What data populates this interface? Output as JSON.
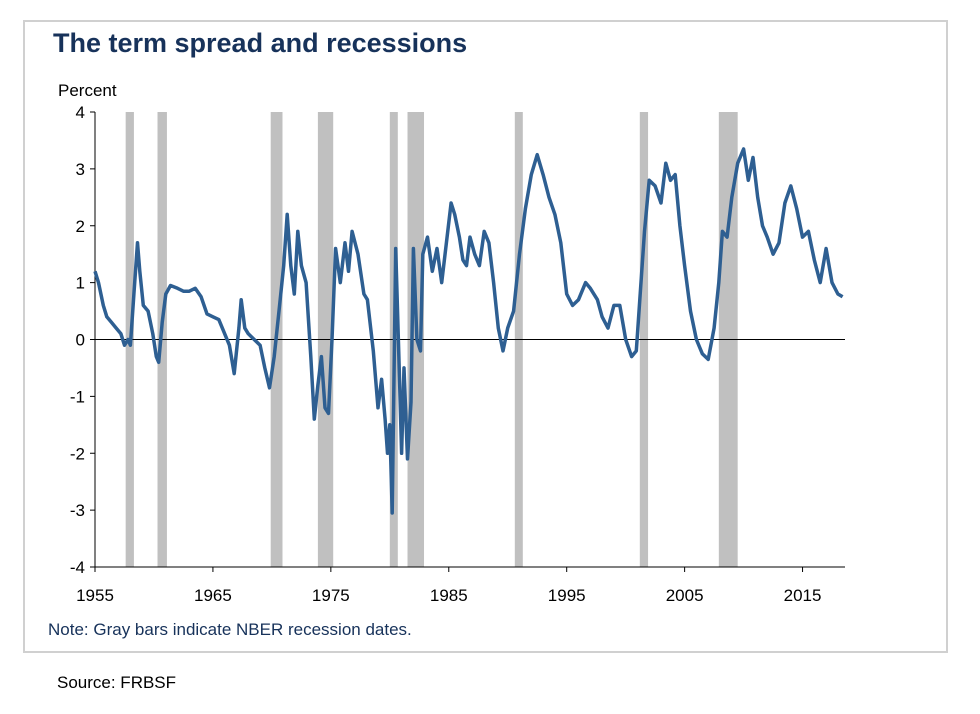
{
  "chart_data": {
    "type": "line",
    "title": "The term spread and recessions",
    "ylabel": "Percent",
    "xlabel": "",
    "note": "Note: Gray bars indicate NBER recession dates.",
    "source": "Source: FRBSF",
    "xlim": [
      1955,
      2018.6
    ],
    "ylim": [
      -4,
      4
    ],
    "xticks": [
      1955,
      1965,
      1975,
      1985,
      1995,
      2005,
      2015
    ],
    "yticks": [
      4,
      3,
      2,
      1,
      0,
      -1,
      -2,
      -3,
      -4
    ],
    "grid": false,
    "line_color": "#2e5f92",
    "recession_color": "#c0c0c0",
    "recessions": [
      [
        1957.6,
        1958.3
      ],
      [
        1960.3,
        1961.1
      ],
      [
        1969.9,
        1970.9
      ],
      [
        1973.9,
        1975.2
      ],
      [
        1980.0,
        1980.5
      ],
      [
        1981.5,
        1982.9
      ],
      [
        1990.6,
        1991.2
      ],
      [
        2001.2,
        2001.9
      ],
      [
        2007.9,
        2009.5
      ]
    ],
    "series": [
      {
        "x": [
          1955.0,
          1955.3,
          1955.7,
          1956.0,
          1956.4,
          1956.8,
          1957.2,
          1957.5,
          1957.8,
          1958.0,
          1958.3,
          1958.6,
          1958.8,
          1959.1,
          1959.5,
          1959.9,
          1960.2,
          1960.4,
          1960.7,
          1961.0,
          1961.4,
          1962.0,
          1962.5,
          1963.0,
          1963.5,
          1964.0,
          1964.5,
          1965.0,
          1965.5,
          1966.0,
          1966.4,
          1966.8,
          1967.2,
          1967.4,
          1967.7,
          1968.0,
          1968.5,
          1969.0,
          1969.4,
          1969.8,
          1970.2,
          1970.6,
          1971.0,
          1971.3,
          1971.6,
          1971.9,
          1972.2,
          1972.5,
          1972.9,
          1973.3,
          1973.6,
          1973.9,
          1974.2,
          1974.5,
          1974.8,
          1975.1,
          1975.4,
          1975.8,
          1976.2,
          1976.5,
          1976.8,
          1977.3,
          1977.8,
          1978.1,
          1978.6,
          1979.0,
          1979.3,
          1979.6,
          1979.8,
          1980.0,
          1980.2,
          1980.5,
          1980.8,
          1981.0,
          1981.2,
          1981.5,
          1981.8,
          1982.0,
          1982.3,
          1982.6,
          1982.8,
          1983.2,
          1983.6,
          1984.0,
          1984.4,
          1984.8,
          1985.2,
          1985.5,
          1985.9,
          1986.2,
          1986.5,
          1986.8,
          1987.2,
          1987.6,
          1988.0,
          1988.4,
          1988.8,
          1989.2,
          1989.6,
          1990.0,
          1990.5,
          1991.0,
          1991.5,
          1992.0,
          1992.5,
          1993.0,
          1993.5,
          1994.0,
          1994.5,
          1995.0,
          1995.5,
          1996.0,
          1996.6,
          1997.0,
          1997.6,
          1998.0,
          1998.5,
          1999.0,
          1999.5,
          2000.0,
          2000.5,
          2000.9,
          2001.2,
          2001.6,
          2002.0,
          2002.5,
          2003.0,
          2003.4,
          2003.8,
          2004.2,
          2004.6,
          2005.0,
          2005.5,
          2006.0,
          2006.5,
          2007.0,
          2007.5,
          2007.9,
          2008.2,
          2008.6,
          2009.0,
          2009.5,
          2010.0,
          2010.4,
          2010.8,
          2011.2,
          2011.6,
          2012.0,
          2012.5,
          2013.0,
          2013.5,
          2014.0,
          2014.5,
          2015.0,
          2015.5,
          2016.0,
          2016.5,
          2017.0,
          2017.5,
          2018.0,
          2018.4
        ],
        "y": [
          1.2,
          1.0,
          0.6,
          0.4,
          0.3,
          0.2,
          0.1,
          -0.1,
          0.0,
          -0.1,
          0.8,
          1.7,
          1.2,
          0.6,
          0.5,
          0.1,
          -0.3,
          -0.4,
          0.3,
          0.8,
          0.95,
          0.9,
          0.85,
          0.85,
          0.9,
          0.75,
          0.45,
          0.4,
          0.35,
          0.1,
          -0.1,
          -0.6,
          0.2,
          0.7,
          0.2,
          0.1,
          0.0,
          -0.1,
          -0.5,
          -0.85,
          -0.3,
          0.5,
          1.3,
          2.2,
          1.3,
          0.8,
          1.9,
          1.3,
          1.0,
          -0.3,
          -1.4,
          -0.8,
          -0.3,
          -1.2,
          -1.3,
          0.0,
          1.6,
          1.0,
          1.7,
          1.2,
          1.9,
          1.5,
          0.8,
          0.7,
          -0.2,
          -1.2,
          -0.7,
          -1.4,
          -2.0,
          -1.5,
          -3.05,
          1.6,
          -0.5,
          -2.0,
          -0.5,
          -2.1,
          -1.1,
          1.6,
          0.0,
          -0.2,
          1.5,
          1.8,
          1.2,
          1.6,
          1.0,
          1.7,
          2.4,
          2.2,
          1.8,
          1.4,
          1.3,
          1.8,
          1.5,
          1.3,
          1.9,
          1.7,
          1.0,
          0.2,
          -0.2,
          0.2,
          0.5,
          1.5,
          2.3,
          2.9,
          3.25,
          2.9,
          2.5,
          2.2,
          1.7,
          0.8,
          0.6,
          0.7,
          1.0,
          0.9,
          0.7,
          0.4,
          0.2,
          0.6,
          0.6,
          0.0,
          -0.3,
          -0.2,
          0.7,
          1.9,
          2.8,
          2.7,
          2.4,
          3.1,
          2.8,
          2.9,
          2.0,
          1.3,
          0.5,
          0.0,
          -0.25,
          -0.35,
          0.2,
          1.0,
          1.9,
          1.8,
          2.5,
          3.1,
          3.35,
          2.8,
          3.2,
          2.5,
          2.0,
          1.8,
          1.5,
          1.7,
          2.4,
          2.7,
          2.3,
          1.8,
          1.9,
          1.4,
          1.0,
          1.6,
          1.0,
          0.8,
          0.75
        ]
      }
    ]
  }
}
